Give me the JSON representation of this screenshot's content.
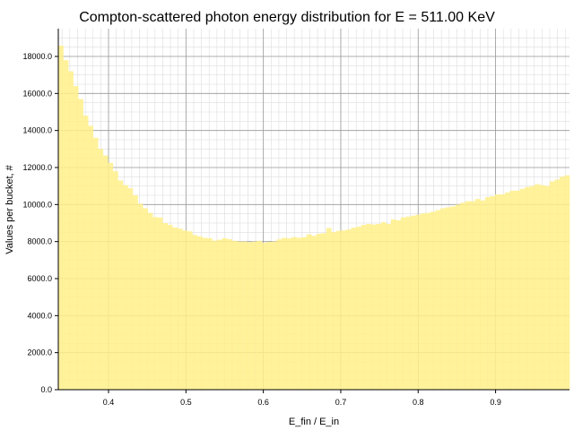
{
  "chart_data": {
    "type": "bar",
    "title": "Compton-scattered photon energy distribution for E = 511.00 KeV",
    "xlabel": "E_fin / E_in",
    "ylabel": "Values per bucket, #",
    "xlim": [
      0.3351,
      0.9955
    ],
    "ylim": [
      0,
      19500
    ],
    "x_ticks": [
      0.4,
      0.5,
      0.6,
      0.7,
      0.8,
      0.9
    ],
    "x_tick_labels": [
      "0.4",
      "0.5",
      "0.6",
      "0.7",
      "0.8",
      "0.9"
    ],
    "y_ticks": [
      0,
      2000,
      4000,
      6000,
      8000,
      10000,
      12000,
      14000,
      16000,
      18000
    ],
    "y_tick_labels": [
      "0.0",
      "2000.0",
      "4000.0",
      "6000.0",
      "8000.0",
      "10000.0",
      "12000.0",
      "14000.0",
      "16000.0",
      "18000.0"
    ],
    "grid": true,
    "minor_grid": true,
    "bar_color": "#fff08a",
    "bin_edges": [
      0.3351,
      0.9955
    ],
    "values": [
      18580,
      17800,
      17200,
      16400,
      15700,
      14800,
      14250,
      13600,
      13000,
      12650,
      12250,
      11800,
      11300,
      11050,
      10880,
      10500,
      10050,
      9800,
      9550,
      9320,
      9300,
      9000,
      8900,
      8760,
      8700,
      8600,
      8550,
      8350,
      8280,
      8200,
      8180,
      8050,
      8100,
      8180,
      8130,
      8040,
      8000,
      8000,
      7970,
      8000,
      8040,
      7940,
      7980,
      8000,
      8120,
      8200,
      8180,
      8240,
      8200,
      8240,
      8390,
      8310,
      8420,
      8450,
      8730,
      8510,
      8580,
      8600,
      8650,
      8750,
      8800,
      8900,
      8950,
      8920,
      8950,
      9050,
      8950,
      9200,
      9150,
      9300,
      9350,
      9400,
      9450,
      9520,
      9550,
      9610,
      9700,
      9800,
      9850,
      9900,
      10000,
      10100,
      10180,
      10180,
      10300,
      10220,
      10400,
      10450,
      10550,
      10550,
      10650,
      10750,
      10750,
      10850,
      10950,
      11000,
      11100,
      11050,
      11000,
      11250,
      11350,
      11500,
      11580
    ]
  }
}
